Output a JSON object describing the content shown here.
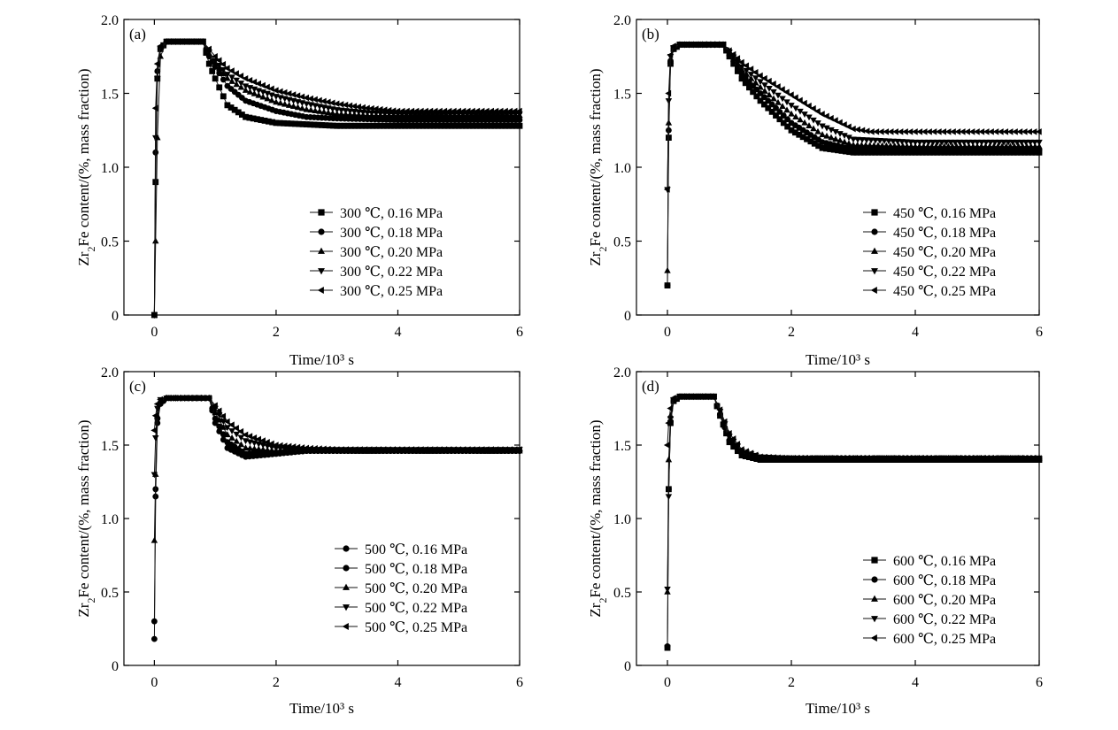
{
  "figure": {
    "y_axis_label": "Zr2Fe content/(%, mass fraction)",
    "x_axis_label": "Time/10³ s"
  },
  "chart_data": [
    {
      "type": "line",
      "panel_label": "(a)",
      "xlabel": "Time/10³ s",
      "ylabel": "Zr2Fe content/(%, mass fraction)",
      "xlim": [
        -0.5,
        6
      ],
      "ylim": [
        0,
        2.0
      ],
      "x_ticks": [
        0,
        2,
        4,
        6
      ],
      "y_ticks": [
        0,
        0.5,
        1.0,
        1.5,
        2.0
      ],
      "y_tick_labels": [
        "0",
        "0.5",
        "1.0",
        "1.5",
        "2.0"
      ],
      "legend_position": "bottom-right",
      "series": [
        {
          "name": "300 ℃, 0.16 MPa",
          "marker": "square",
          "x": [
            0,
            0.02,
            0.05,
            0.1,
            0.2,
            0.5,
            0.8,
            0.9,
            1.0,
            1.2,
            1.5,
            2.0,
            2.5,
            3.0,
            4.0,
            5.0,
            6.0
          ],
          "y": [
            0,
            0.9,
            1.6,
            1.8,
            1.85,
            1.85,
            1.85,
            1.7,
            1.6,
            1.42,
            1.34,
            1.3,
            1.29,
            1.28,
            1.28,
            1.28,
            1.28
          ]
        },
        {
          "name": "300 ℃, 0.18 MPa",
          "marker": "circle",
          "x": [
            0,
            0.02,
            0.05,
            0.1,
            0.2,
            0.5,
            0.8,
            0.9,
            1.0,
            1.2,
            1.5,
            2.0,
            2.5,
            3.0,
            4.0,
            5.0,
            6.0
          ],
          "y": [
            0,
            1.1,
            1.65,
            1.8,
            1.85,
            1.85,
            1.85,
            1.75,
            1.68,
            1.55,
            1.45,
            1.38,
            1.34,
            1.33,
            1.32,
            1.32,
            1.32
          ]
        },
        {
          "name": "300 ℃, 0.20 MPa",
          "marker": "triangle-up",
          "x": [
            0,
            0.02,
            0.05,
            0.1,
            0.2,
            0.5,
            0.8,
            0.9,
            1.0,
            1.2,
            1.5,
            2.0,
            2.5,
            3.0,
            3.5,
            4.0,
            5.0,
            6.0
          ],
          "y": [
            0,
            0.5,
            1.2,
            1.75,
            1.85,
            1.85,
            1.85,
            1.77,
            1.7,
            1.6,
            1.52,
            1.44,
            1.39,
            1.36,
            1.35,
            1.35,
            1.35,
            1.35
          ]
        },
        {
          "name": "300 ℃, 0.22 MPa",
          "marker": "triangle-down",
          "x": [
            0,
            0.02,
            0.05,
            0.1,
            0.2,
            0.5,
            0.8,
            0.9,
            1.0,
            1.2,
            1.5,
            2.0,
            2.5,
            3.0,
            3.5,
            4.0,
            5.0,
            6.0
          ],
          "y": [
            0,
            1.2,
            1.6,
            1.8,
            1.85,
            1.85,
            1.85,
            1.78,
            1.72,
            1.63,
            1.55,
            1.48,
            1.43,
            1.39,
            1.37,
            1.36,
            1.36,
            1.36
          ]
        },
        {
          "name": "300 ℃, 0.25 MPa",
          "marker": "triangle-left",
          "x": [
            0,
            0.02,
            0.05,
            0.1,
            0.2,
            0.5,
            0.8,
            0.9,
            1.0,
            1.2,
            1.5,
            2.0,
            2.5,
            3.0,
            3.5,
            4.0,
            5.0,
            6.0
          ],
          "y": [
            0,
            1.4,
            1.7,
            1.82,
            1.85,
            1.85,
            1.85,
            1.8,
            1.75,
            1.67,
            1.6,
            1.52,
            1.47,
            1.43,
            1.4,
            1.38,
            1.38,
            1.38
          ]
        }
      ]
    },
    {
      "type": "line",
      "panel_label": "(b)",
      "xlabel": "Time/10³ s",
      "ylabel": "Zr2Fe content/(%, mass fraction)",
      "xlim": [
        -0.5,
        6
      ],
      "ylim": [
        0,
        2.0
      ],
      "x_ticks": [
        0,
        2,
        4,
        6
      ],
      "y_ticks": [
        0,
        0.5,
        1.0,
        1.5,
        2.0
      ],
      "y_tick_labels": [
        "0",
        "0.5",
        "1.0",
        "1.5",
        "2.0"
      ],
      "legend_position": "bottom-right",
      "series": [
        {
          "name": "450 ℃, 0.16 MPa",
          "marker": "square",
          "x": [
            0,
            0.02,
            0.05,
            0.1,
            0.2,
            0.5,
            0.9,
            1.0,
            1.2,
            1.5,
            2.0,
            2.5,
            3.0,
            4.0,
            5.0,
            6.0
          ],
          "y": [
            0.2,
            1.2,
            1.7,
            1.8,
            1.83,
            1.83,
            1.83,
            1.75,
            1.6,
            1.45,
            1.25,
            1.13,
            1.1,
            1.1,
            1.1,
            1.1
          ]
        },
        {
          "name": "450 ℃, 0.18 MPa",
          "marker": "circle",
          "x": [
            0,
            0.02,
            0.05,
            0.1,
            0.2,
            0.5,
            0.9,
            1.0,
            1.2,
            1.5,
            2.0,
            2.5,
            3.0,
            4.0,
            5.0,
            6.0
          ],
          "y": [
            0.2,
            1.25,
            1.72,
            1.8,
            1.83,
            1.83,
            1.83,
            1.76,
            1.63,
            1.5,
            1.3,
            1.17,
            1.12,
            1.12,
            1.12,
            1.12
          ]
        },
        {
          "name": "450 ℃, 0.20 MPa",
          "marker": "triangle-up",
          "x": [
            0,
            0.02,
            0.05,
            0.1,
            0.2,
            0.5,
            0.9,
            1.0,
            1.2,
            1.5,
            2.0,
            2.5,
            3.0,
            4.0,
            5.0,
            6.0
          ],
          "y": [
            0.3,
            1.3,
            1.72,
            1.8,
            1.83,
            1.83,
            1.83,
            1.77,
            1.66,
            1.54,
            1.36,
            1.22,
            1.15,
            1.14,
            1.14,
            1.14
          ]
        },
        {
          "name": "450 ℃, 0.22 MPa",
          "marker": "triangle-down",
          "x": [
            0,
            0.02,
            0.05,
            0.1,
            0.2,
            0.5,
            0.9,
            1.0,
            1.2,
            1.5,
            2.0,
            2.5,
            3.0,
            4.0,
            5.0,
            6.0
          ],
          "y": [
            0.85,
            1.45,
            1.75,
            1.81,
            1.83,
            1.83,
            1.83,
            1.78,
            1.68,
            1.58,
            1.42,
            1.28,
            1.19,
            1.17,
            1.17,
            1.17
          ]
        },
        {
          "name": "450 ℃, 0.25 MPa",
          "marker": "triangle-left",
          "x": [
            0,
            0.02,
            0.05,
            0.1,
            0.2,
            0.5,
            0.9,
            1.0,
            1.2,
            1.5,
            2.0,
            2.5,
            3.0,
            3.3,
            4.0,
            5.0,
            6.0
          ],
          "y": [
            0.85,
            1.5,
            1.76,
            1.82,
            1.83,
            1.83,
            1.83,
            1.79,
            1.71,
            1.62,
            1.49,
            1.36,
            1.26,
            1.24,
            1.24,
            1.24,
            1.24
          ]
        }
      ]
    },
    {
      "type": "line",
      "panel_label": "(c)",
      "xlabel": "Time/10³ s",
      "ylabel": "Zr2Fe content/(%, mass fraction)",
      "xlim": [
        -0.5,
        6
      ],
      "ylim": [
        0,
        2.0
      ],
      "x_ticks": [
        0,
        2,
        4,
        6
      ],
      "y_ticks": [
        0,
        0.5,
        1.0,
        1.5,
        2.0
      ],
      "y_tick_labels": [
        "0",
        "0.5",
        "1.0",
        "1.5",
        "2.0"
      ],
      "legend_position": "bottom-right",
      "series": [
        {
          "name": "500 ℃, 0.16 MPa",
          "marker": "circle",
          "x": [
            0,
            0.02,
            0.05,
            0.1,
            0.2,
            0.5,
            0.9,
            1.0,
            1.2,
            1.5,
            2.0,
            2.5,
            3.0,
            4.0,
            5.0,
            6.0
          ],
          "y": [
            0.18,
            1.15,
            1.65,
            1.78,
            1.82,
            1.82,
            1.82,
            1.65,
            1.48,
            1.42,
            1.44,
            1.46,
            1.46,
            1.46,
            1.46,
            1.46
          ]
        },
        {
          "name": "500 ℃, 0.18 MPa",
          "marker": "circle",
          "x": [
            0,
            0.02,
            0.05,
            0.1,
            0.2,
            0.5,
            0.9,
            1.0,
            1.2,
            1.5,
            2.0,
            2.5,
            3.0,
            4.0,
            5.0,
            6.0
          ],
          "y": [
            0.3,
            1.2,
            1.68,
            1.79,
            1.82,
            1.82,
            1.82,
            1.68,
            1.52,
            1.44,
            1.45,
            1.46,
            1.46,
            1.46,
            1.46,
            1.46
          ]
        },
        {
          "name": "500 ℃, 0.20 MPa",
          "marker": "triangle-up",
          "x": [
            0,
            0.02,
            0.05,
            0.1,
            0.2,
            0.5,
            0.9,
            1.0,
            1.2,
            1.5,
            2.0,
            2.5,
            3.0,
            4.0,
            5.0,
            6.0
          ],
          "y": [
            0.85,
            1.3,
            1.7,
            1.8,
            1.82,
            1.82,
            1.82,
            1.72,
            1.57,
            1.48,
            1.46,
            1.46,
            1.46,
            1.46,
            1.46,
            1.46
          ]
        },
        {
          "name": "500 ℃, 0.22 MPa",
          "marker": "triangle-down",
          "x": [
            0,
            0.02,
            0.05,
            0.1,
            0.2,
            0.5,
            0.9,
            1.0,
            1.2,
            1.5,
            2.0,
            2.5,
            3.0,
            4.0,
            5.0,
            6.0
          ],
          "y": [
            1.3,
            1.55,
            1.75,
            1.81,
            1.82,
            1.82,
            1.82,
            1.75,
            1.62,
            1.53,
            1.48,
            1.47,
            1.47,
            1.47,
            1.47,
            1.47
          ]
        },
        {
          "name": "500 ℃, 0.25 MPa",
          "marker": "triangle-left",
          "x": [
            0,
            0.02,
            0.05,
            0.1,
            0.2,
            0.5,
            0.9,
            1.0,
            1.2,
            1.5,
            2.0,
            2.5,
            3.0,
            4.0,
            5.0,
            6.0
          ],
          "y": [
            1.6,
            1.7,
            1.78,
            1.81,
            1.82,
            1.82,
            1.82,
            1.77,
            1.66,
            1.57,
            1.5,
            1.48,
            1.47,
            1.47,
            1.47,
            1.47
          ]
        }
      ]
    },
    {
      "type": "line",
      "panel_label": "(d)",
      "xlabel": "Time/10³ s",
      "ylabel": "Zr2Fe content/(%, mass fraction)",
      "xlim": [
        -0.5,
        6
      ],
      "ylim": [
        0,
        2.0
      ],
      "x_ticks": [
        0,
        2,
        4,
        6
      ],
      "y_ticks": [
        0,
        0.5,
        1.0,
        1.5,
        2.0
      ],
      "y_tick_labels": [
        "0",
        "0.5",
        "1.0",
        "1.5",
        "2.0"
      ],
      "legend_position": "bottom-right",
      "series": [
        {
          "name": "600 ℃, 0.16 MPa",
          "marker": "square",
          "x": [
            0,
            0.02,
            0.05,
            0.1,
            0.2,
            0.5,
            0.75,
            0.85,
            1.0,
            1.2,
            1.5,
            2.0,
            3.0,
            4.0,
            5.0,
            6.0
          ],
          "y": [
            0.12,
            1.2,
            1.65,
            1.8,
            1.83,
            1.83,
            1.83,
            1.7,
            1.52,
            1.43,
            1.4,
            1.4,
            1.4,
            1.4,
            1.4,
            1.4
          ]
        },
        {
          "name": "600 ℃, 0.18 MPa",
          "marker": "circle",
          "x": [
            0,
            0.02,
            0.05,
            0.1,
            0.2,
            0.5,
            0.75,
            0.85,
            1.0,
            1.2,
            1.5,
            2.0,
            3.0,
            4.0,
            5.0,
            6.0
          ],
          "y": [
            0.13,
            1.2,
            1.66,
            1.8,
            1.83,
            1.83,
            1.83,
            1.71,
            1.53,
            1.44,
            1.41,
            1.41,
            1.41,
            1.41,
            1.41,
            1.41
          ]
        },
        {
          "name": "600 ℃, 0.20 MPa",
          "marker": "triangle-up",
          "x": [
            0,
            0.02,
            0.05,
            0.1,
            0.2,
            0.5,
            0.75,
            0.85,
            1.0,
            1.2,
            1.5,
            2.0,
            3.0,
            4.0,
            5.0,
            6.0
          ],
          "y": [
            0.5,
            1.4,
            1.7,
            1.81,
            1.83,
            1.83,
            1.83,
            1.72,
            1.55,
            1.45,
            1.41,
            1.41,
            1.41,
            1.41,
            1.41,
            1.41
          ]
        },
        {
          "name": "600 ℃, 0.22 MPa",
          "marker": "triangle-down",
          "x": [
            0,
            0.02,
            0.05,
            0.1,
            0.2,
            0.5,
            0.75,
            0.85,
            1.0,
            1.2,
            1.5,
            2.0,
            3.0,
            4.0,
            5.0,
            6.0
          ],
          "y": [
            0.52,
            1.15,
            1.68,
            1.81,
            1.83,
            1.83,
            1.83,
            1.73,
            1.56,
            1.46,
            1.42,
            1.41,
            1.41,
            1.41,
            1.41,
            1.41
          ]
        },
        {
          "name": "600 ℃, 0.25 MPa",
          "marker": "triangle-left",
          "x": [
            0,
            0.02,
            0.05,
            0.1,
            0.2,
            0.5,
            0.75,
            0.85,
            1.0,
            1.2,
            1.5,
            2.0,
            3.0,
            4.0,
            5.0,
            6.0
          ],
          "y": [
            1.5,
            1.65,
            1.75,
            1.82,
            1.83,
            1.83,
            1.83,
            1.74,
            1.58,
            1.47,
            1.42,
            1.41,
            1.41,
            1.41,
            1.41,
            1.41
          ]
        }
      ]
    }
  ]
}
